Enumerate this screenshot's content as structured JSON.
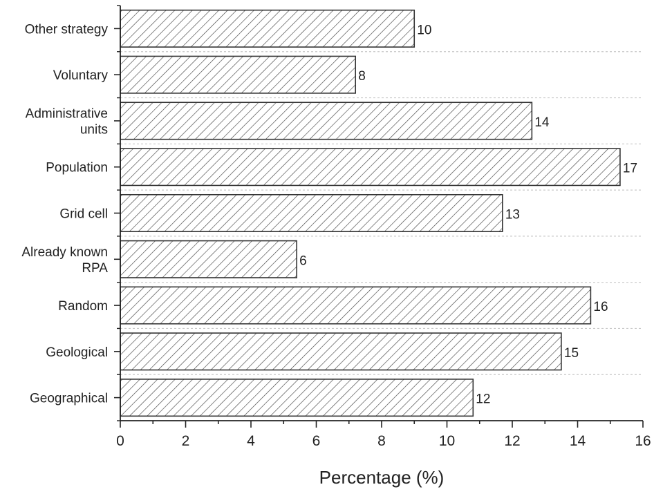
{
  "chart_data": {
    "type": "bar",
    "orientation": "horizontal",
    "title": "",
    "xlabel": "Percentage (%)",
    "ylabel": "",
    "xlim": [
      0,
      16
    ],
    "xticks": [
      "0",
      "2",
      "4",
      "6",
      "8",
      "10",
      "12",
      "14",
      "16"
    ],
    "categories": [
      [
        "Other strategy"
      ],
      [
        "Voluntary"
      ],
      [
        "Administrative",
        "units"
      ],
      [
        "Population"
      ],
      [
        "Grid cell"
      ],
      [
        "Already known",
        "RPA"
      ],
      [
        "Random"
      ],
      [
        "Geological"
      ],
      [
        "Geographical"
      ]
    ],
    "values": [
      9.0,
      7.2,
      12.6,
      15.3,
      11.7,
      5.4,
      14.4,
      13.5,
      10.8
    ],
    "data_labels": [
      "10",
      "8",
      "14",
      "17",
      "13",
      "6",
      "16",
      "15",
      "12"
    ],
    "grid": "dotted horizontal separators between categories",
    "fill": "diagonal hatch",
    "colors": {
      "bar_edge": "#333333",
      "hatch": "#444444",
      "grid": "#c8c8c8"
    }
  }
}
